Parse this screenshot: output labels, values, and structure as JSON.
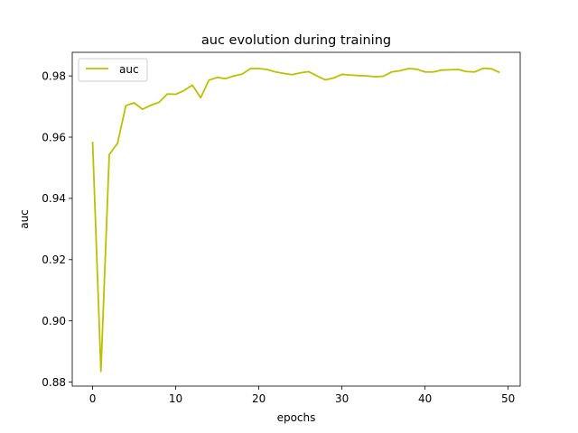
{
  "chart_data": {
    "type": "line",
    "title": "auc evolution during training",
    "xlabel": "epochs",
    "ylabel": "auc",
    "xlim": [
      -2.45,
      51.45
    ],
    "ylim": [
      0.8787,
      0.9877
    ],
    "xticks": [
      0,
      10,
      20,
      30,
      40,
      50
    ],
    "xtick_labels": [
      "0",
      "10",
      "20",
      "30",
      "40",
      "50"
    ],
    "yticks": [
      0.88,
      0.9,
      0.92,
      0.94,
      0.96,
      0.98
    ],
    "ytick_labels": [
      "0.88",
      "0.90",
      "0.92",
      "0.94",
      "0.96",
      "0.98"
    ],
    "grid": false,
    "legend": "upper left",
    "series": [
      {
        "name": "auc",
        "color": "#bfbf00",
        "x": [
          0,
          1,
          2,
          3,
          4,
          5,
          6,
          7,
          8,
          9,
          10,
          11,
          12,
          13,
          14,
          15,
          16,
          17,
          18,
          19,
          20,
          21,
          22,
          23,
          24,
          25,
          26,
          27,
          28,
          29,
          30,
          31,
          32,
          33,
          34,
          35,
          36,
          37,
          38,
          39,
          40,
          41,
          42,
          43,
          44,
          45,
          46,
          47,
          48,
          49
        ],
        "values": [
          0.9585,
          0.8835,
          0.9543,
          0.958,
          0.9703,
          0.9712,
          0.9691,
          0.9704,
          0.9714,
          0.9741,
          0.974,
          0.9752,
          0.977,
          0.9729,
          0.9786,
          0.9795,
          0.9791,
          0.98,
          0.9806,
          0.9824,
          0.9824,
          0.9821,
          0.9813,
          0.9808,
          0.9804,
          0.981,
          0.9814,
          0.98,
          0.9787,
          0.9793,
          0.9805,
          0.9803,
          0.9801,
          0.98,
          0.9797,
          0.9799,
          0.9813,
          0.9817,
          0.9824,
          0.9822,
          0.9813,
          0.9813,
          0.9819,
          0.982,
          0.9821,
          0.9814,
          0.9813,
          0.9825,
          0.9823,
          0.9811
        ]
      }
    ]
  }
}
